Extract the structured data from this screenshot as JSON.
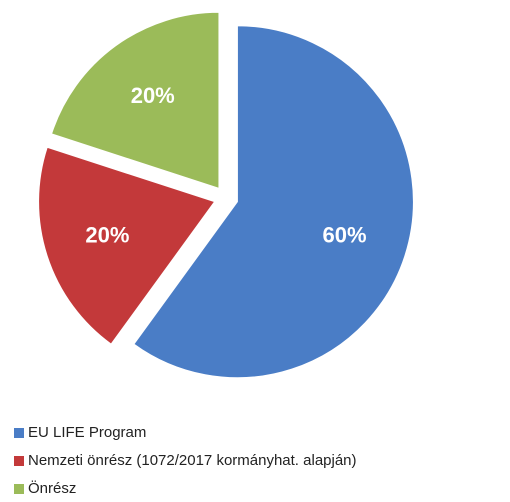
{
  "chart_data": {
    "type": "pie",
    "categories": [
      "EU LIFE Program",
      "Nemzeti önrész (1072/2017 kormányhat. alapján)",
      "Önrész"
    ],
    "values": [
      60,
      20,
      20
    ],
    "value_labels": [
      "60%",
      "20%",
      "20%"
    ],
    "colors": [
      "#4a7dc6",
      "#c3393a",
      "#9bbb59"
    ],
    "legend": "bottom"
  }
}
